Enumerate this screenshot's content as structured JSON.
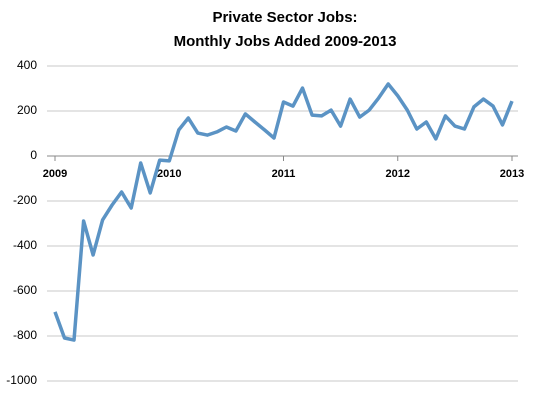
{
  "chart_data": {
    "type": "line",
    "title": "Private Sector Jobs:",
    "subtitle": "Monthly Jobs Added 2009-2013",
    "categories": [
      "2009",
      null,
      null,
      null,
      null,
      null,
      null,
      null,
      null,
      null,
      null,
      null,
      "2010",
      null,
      null,
      null,
      null,
      null,
      null,
      null,
      null,
      null,
      null,
      null,
      "2011",
      null,
      null,
      null,
      null,
      null,
      null,
      null,
      null,
      null,
      null,
      null,
      "2012",
      null,
      null,
      null,
      null,
      null,
      null,
      null,
      null,
      null,
      null,
      null,
      "2013"
    ],
    "series": [
      {
        "name": "Private Sector Jobs",
        "color": "#5b93c4",
        "values": [
          -693,
          -809,
          -818,
          -289,
          -440,
          -284,
          -218,
          -160,
          -231,
          -31,
          -164,
          -18,
          -22,
          116,
          169,
          102,
          93,
          107,
          129,
          111,
          187,
          151,
          116,
          80,
          240,
          222,
          302,
          182,
          178,
          204,
          133,
          253,
          173,
          204,
          258,
          320,
          267,
          204,
          120,
          151,
          76,
          178,
          133,
          120,
          218,
          253,
          222,
          138,
          244
        ]
      }
    ],
    "ylim": [
      -1000,
      400
    ],
    "yticks": [
      -1000,
      -800,
      -600,
      -400,
      -200,
      0,
      200,
      400
    ],
    "grid": true
  }
}
